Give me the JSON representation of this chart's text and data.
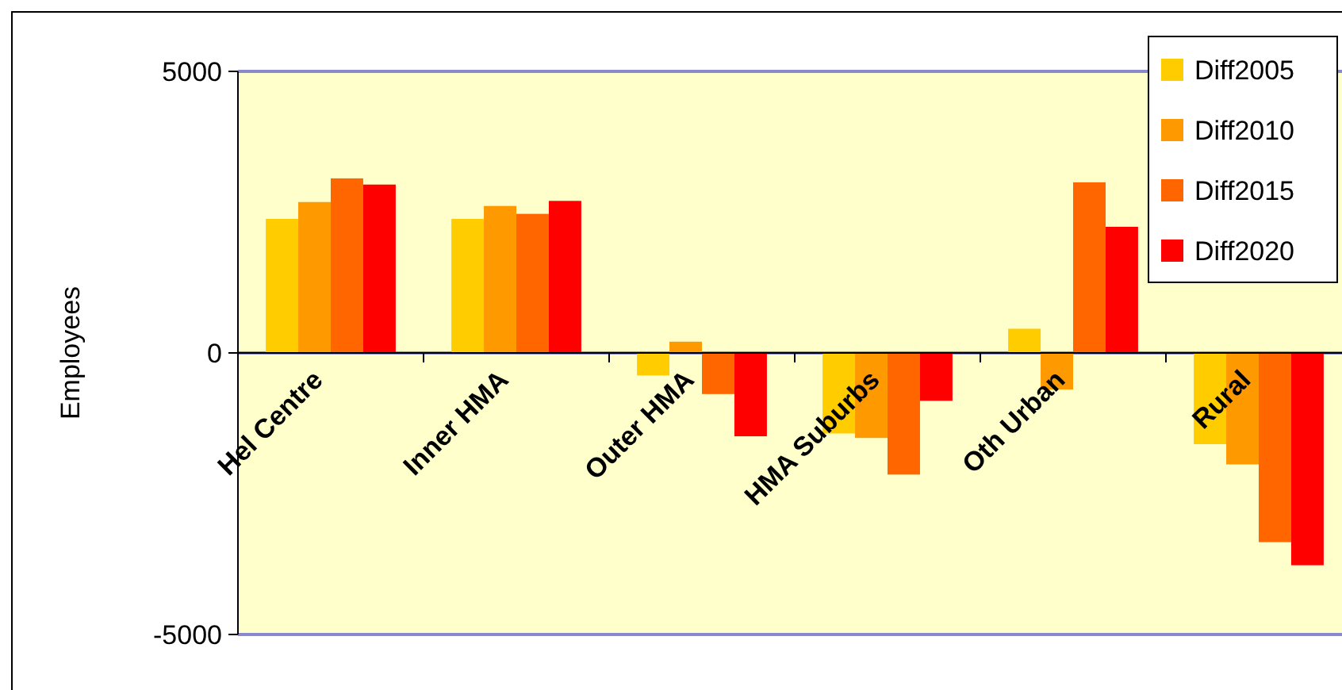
{
  "chart_data": {
    "type": "bar",
    "ylabel": "Employees",
    "categories": [
      "Hel Centre",
      "Inner HMA",
      "Outer HMA",
      "HMA Suburbs",
      "Oth Urban",
      "Rural"
    ],
    "series": [
      {
        "name": "Diff2005",
        "color": "#ffcc00",
        "values": [
          2380,
          2380,
          -400,
          -1430,
          430,
          -1620
        ]
      },
      {
        "name": "Diff2010",
        "color": "#ff9900",
        "values": [
          2680,
          2610,
          200,
          -1510,
          -650,
          -1980
        ]
      },
      {
        "name": "Diff2015",
        "color": "#ff6600",
        "values": [
          3100,
          2470,
          -730,
          -2160,
          3030,
          -3360
        ]
      },
      {
        "name": "Diff2020",
        "color": "#ff0000",
        "values": [
          2990,
          2700,
          -1480,
          -850,
          2240,
          -3770
        ]
      }
    ],
    "ylim": [
      -5000,
      5000
    ],
    "yticks": [
      -5000,
      0,
      5000
    ],
    "grid": "y",
    "legend": "top right"
  }
}
